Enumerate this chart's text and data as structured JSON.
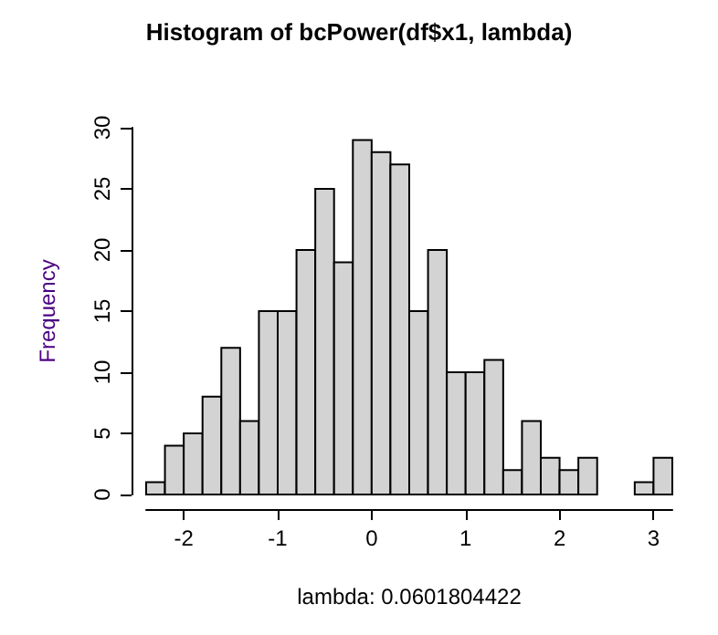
{
  "chart_data": {
    "type": "histogram",
    "title": "Histogram of bcPower(df$x1, lambda)",
    "xlabel": "lambda: 0.0601804422",
    "ylabel": "Frequency",
    "bins": [
      -2.4,
      -2.2,
      -2.0,
      -1.8,
      -1.6,
      -1.4,
      -1.2,
      -1.0,
      -0.8,
      -0.6,
      -0.4,
      -0.2,
      0,
      0.2,
      0.4,
      0.6,
      0.8,
      1.0,
      1.2,
      1.4,
      1.6,
      1.8,
      2.0,
      2.2,
      2.4,
      2.6,
      2.8,
      3.0,
      3.2
    ],
    "values": [
      1,
      4,
      5,
      8,
      12,
      6,
      15,
      15,
      20,
      25,
      19,
      29,
      28,
      27,
      15,
      20,
      10,
      10,
      11,
      2,
      6,
      3,
      2,
      3,
      0,
      0,
      1,
      3
    ],
    "color": "#d3d3d3",
    "xlim": [
      -2.4,
      3.2
    ],
    "xticks": [
      -2,
      -1,
      0,
      1,
      2,
      3
    ],
    "ylim": [
      0,
      30
    ],
    "yticks": [
      0,
      5,
      10,
      15,
      20,
      25,
      30
    ]
  }
}
